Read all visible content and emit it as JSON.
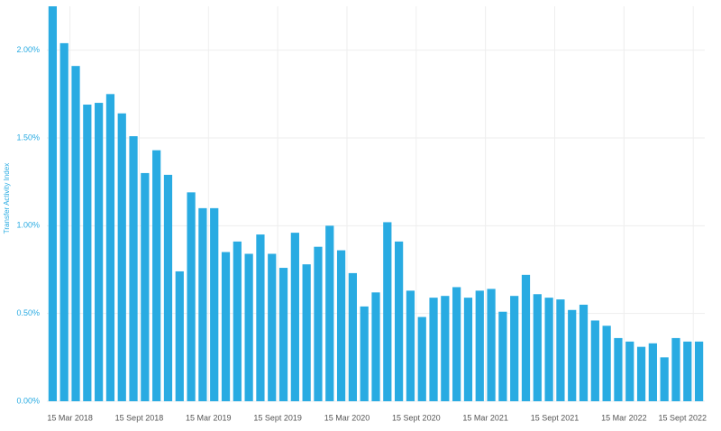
{
  "chart_data": {
    "type": "bar",
    "y_label": "Transfer Activity Index",
    "categories": [
      null,
      null,
      null,
      null,
      null,
      null,
      null,
      null,
      null,
      null,
      null,
      null,
      null,
      null,
      null,
      null,
      null,
      null,
      null,
      null,
      null,
      null,
      null,
      null,
      null,
      null,
      null,
      null,
      null,
      null,
      null,
      null,
      null,
      null,
      null,
      null,
      null,
      null,
      null,
      null,
      null,
      null,
      null,
      null,
      null,
      null,
      null,
      null,
      null,
      null,
      null,
      null,
      null,
      null,
      null,
      null,
      null
    ],
    "values": [
      2.25,
      2.04,
      1.91,
      1.69,
      1.7,
      1.75,
      1.64,
      1.51,
      1.3,
      1.43,
      1.29,
      0.74,
      1.19,
      1.1,
      1.1,
      0.85,
      0.91,
      0.84,
      0.95,
      0.84,
      0.76,
      0.96,
      0.78,
      0.88,
      1.0,
      0.86,
      0.73,
      0.54,
      0.62,
      1.02,
      0.91,
      0.63,
      0.48,
      0.59,
      0.6,
      0.65,
      0.59,
      0.63,
      0.64,
      0.51,
      0.6,
      0.72,
      0.61,
      0.59,
      0.58,
      0.52,
      0.55,
      0.46,
      0.43,
      0.36,
      0.34,
      0.31,
      0.33,
      0.25,
      0.36,
      0.34,
      0.34
    ],
    "color": "#29abe2",
    "ylim": [
      0,
      2.25
    ],
    "yticks": [
      {
        "value": 0,
        "label": "0.00%"
      },
      {
        "value": 0.5,
        "label": "0.50%"
      },
      {
        "value": 1,
        "label": "1.00%"
      },
      {
        "value": 1.5,
        "label": "1.50%"
      },
      {
        "value": 2,
        "label": "2.00%"
      }
    ],
    "xticks": [
      {
        "value": 1.5,
        "label": "15 Mar 2018"
      },
      {
        "value": 7.5,
        "label": "15 Sept 2018"
      },
      {
        "value": 13.5,
        "label": "15 Mar 2019"
      },
      {
        "value": 19.5,
        "label": "15 Sept 2019"
      },
      {
        "value": 25.5,
        "label": "15 Mar 2020"
      },
      {
        "value": 31.5,
        "label": "15 Sept 2020"
      },
      {
        "value": 37.5,
        "label": "15 Mar 2021"
      },
      {
        "value": 43.5,
        "label": "15 Sept 2021"
      },
      {
        "value": 49.5,
        "label": "15 Mar 2022"
      },
      {
        "value": 55.5,
        "label": "15 Sept 2022"
      }
    ],
    "grid": true
  }
}
